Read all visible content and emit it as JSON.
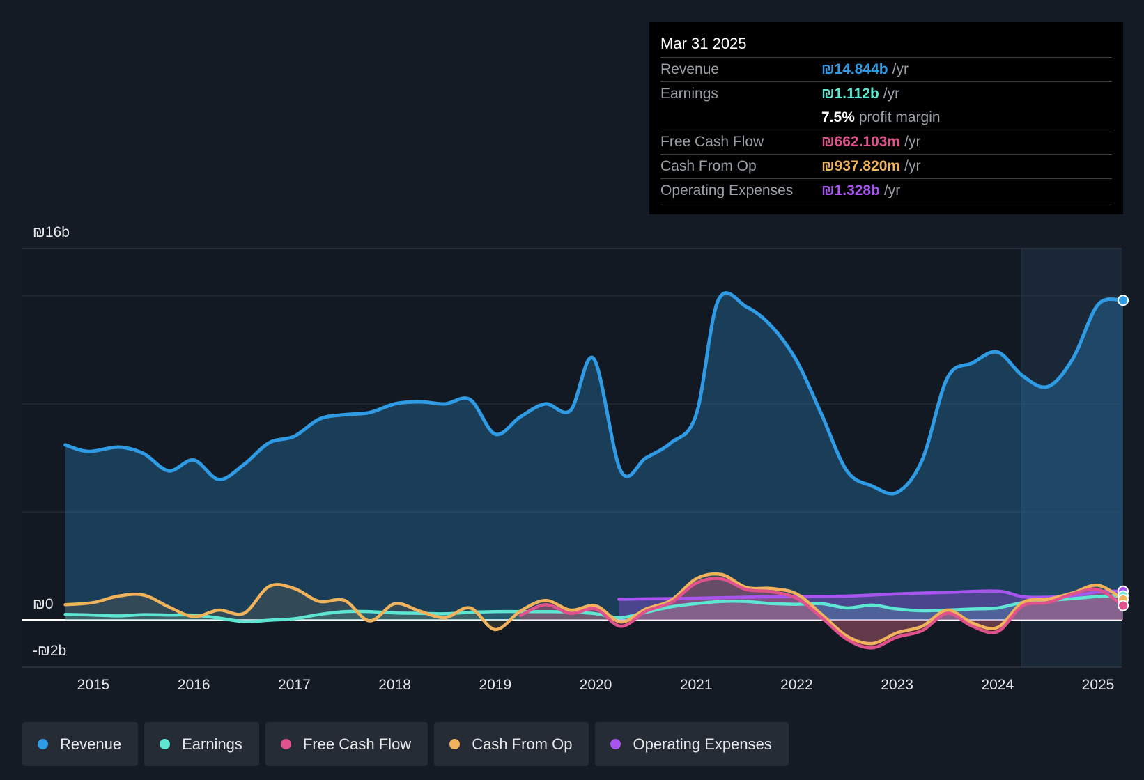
{
  "tooltip": {
    "date": "Mar 31 2025",
    "rows": [
      {
        "label": "Revenue",
        "value": "₪14.844b",
        "unit": "/yr",
        "color": "#2f9be5"
      },
      {
        "label": "Earnings",
        "value": "₪1.112b",
        "unit": "/yr",
        "color": "#5ee6d2"
      },
      {
        "label": "",
        "value": "7.5%",
        "unit": "profit margin",
        "color": "#ffffff"
      },
      {
        "label": "Free Cash Flow",
        "value": "₪662.103m",
        "unit": "/yr",
        "color": "#e0528c"
      },
      {
        "label": "Cash From Op",
        "value": "₪937.820m",
        "unit": "/yr",
        "color": "#f0b35c"
      },
      {
        "label": "Operating Expenses",
        "value": "₪1.328b",
        "unit": "/yr",
        "color": "#a855f0"
      }
    ]
  },
  "legend": [
    {
      "label": "Revenue",
      "color": "#2f9be5"
    },
    {
      "label": "Earnings",
      "color": "#5ee6d2"
    },
    {
      "label": "Free Cash Flow",
      "color": "#e0528c"
    },
    {
      "label": "Cash From Op",
      "color": "#f0b35c"
    },
    {
      "label": "Operating Expenses",
      "color": "#a855f0"
    }
  ],
  "chart_data": {
    "type": "line",
    "x_tick_labels": [
      "2015",
      "2016",
      "2017",
      "2018",
      "2019",
      "2020",
      "2021",
      "2022",
      "2023",
      "2024",
      "2025"
    ],
    "y_tick_labels": [
      "₪16b",
      "₪0",
      "-₪2b"
    ],
    "ylim": [
      -2,
      16
    ],
    "xlim": [
      2014.3,
      2025.25
    ],
    "grid": true,
    "legend_position": "bottom",
    "series": [
      {
        "name": "Revenue",
        "color": "#2f9be5",
        "x": [
          2014.72,
          2014.95,
          2015.25,
          2015.5,
          2015.75,
          2016.0,
          2016.25,
          2016.5,
          2016.75,
          2017.0,
          2017.25,
          2017.5,
          2017.75,
          2018.0,
          2018.25,
          2018.5,
          2018.75,
          2019.0,
          2019.25,
          2019.5,
          2019.75,
          2019.98,
          2020.25,
          2020.5,
          2020.75,
          2021.0,
          2021.22,
          2021.5,
          2021.75,
          2022.0,
          2022.25,
          2022.5,
          2022.75,
          2023.0,
          2023.25,
          2023.5,
          2023.75,
          2024.0,
          2024.25,
          2024.5,
          2024.75,
          2025.0,
          2025.25
        ],
        "y": [
          8.1,
          7.8,
          8.0,
          7.7,
          6.9,
          7.4,
          6.5,
          7.2,
          8.2,
          8.5,
          9.3,
          9.5,
          9.6,
          10.0,
          10.1,
          10.0,
          10.2,
          8.6,
          9.4,
          10.0,
          9.7,
          12.1,
          6.9,
          7.5,
          8.2,
          9.5,
          14.8,
          14.5,
          13.6,
          12.0,
          9.5,
          6.9,
          6.2,
          5.9,
          7.4,
          11.2,
          11.9,
          12.4,
          11.3,
          10.8,
          12.1,
          14.6,
          14.8
        ]
      },
      {
        "name": "Earnings",
        "color": "#5ee6d2",
        "x": [
          2014.72,
          2015.0,
          2015.25,
          2015.5,
          2015.75,
          2016.0,
          2016.25,
          2016.5,
          2016.75,
          2017.0,
          2017.25,
          2017.5,
          2017.75,
          2018.0,
          2018.25,
          2018.5,
          2018.75,
          2019.0,
          2019.25,
          2019.5,
          2019.75,
          2020.0,
          2020.25,
          2020.5,
          2020.75,
          2021.0,
          2021.25,
          2021.5,
          2021.75,
          2022.0,
          2022.25,
          2022.5,
          2022.75,
          2023.0,
          2023.25,
          2023.5,
          2023.75,
          2024.0,
          2024.25,
          2024.5,
          2024.75,
          2025.0,
          2025.25
        ],
        "y": [
          0.25,
          0.22,
          0.18,
          0.24,
          0.22,
          0.22,
          0.08,
          -0.08,
          -0.02,
          0.05,
          0.25,
          0.38,
          0.38,
          0.32,
          0.3,
          0.28,
          0.35,
          0.38,
          0.38,
          0.38,
          0.36,
          0.28,
          0.1,
          0.35,
          0.6,
          0.75,
          0.85,
          0.85,
          0.75,
          0.72,
          0.75,
          0.55,
          0.68,
          0.5,
          0.42,
          0.45,
          0.5,
          0.55,
          0.8,
          0.9,
          0.98,
          1.08,
          1.11
        ]
      },
      {
        "name": "Free Cash Flow",
        "color": "#e0528c",
        "x": [
          2019.25,
          2019.5,
          2019.75,
          2020.0,
          2020.25,
          2020.5,
          2020.75,
          2021.0,
          2021.25,
          2021.5,
          2021.75,
          2022.0,
          2022.25,
          2022.5,
          2022.75,
          2023.0,
          2023.25,
          2023.5,
          2023.75,
          2024.0,
          2024.25,
          2024.5,
          2024.75,
          2025.0,
          2025.25
        ],
        "y": [
          0.2,
          0.7,
          0.3,
          0.5,
          -0.3,
          0.4,
          0.8,
          1.7,
          1.9,
          1.4,
          1.3,
          1.0,
          0.1,
          -0.9,
          -1.3,
          -0.8,
          -0.5,
          0.3,
          -0.3,
          -0.55,
          0.65,
          0.8,
          1.2,
          1.4,
          0.66
        ]
      },
      {
        "name": "Cash From Op",
        "color": "#f0b35c",
        "x": [
          2014.72,
          2015.0,
          2015.25,
          2015.5,
          2015.75,
          2016.0,
          2016.25,
          2016.5,
          2016.75,
          2017.0,
          2017.25,
          2017.5,
          2017.75,
          2018.0,
          2018.25,
          2018.5,
          2018.75,
          2019.0,
          2019.25,
          2019.5,
          2019.75,
          2020.0,
          2020.25,
          2020.5,
          2020.75,
          2021.0,
          2021.25,
          2021.5,
          2021.75,
          2022.0,
          2022.25,
          2022.5,
          2022.75,
          2023.0,
          2023.25,
          2023.5,
          2023.75,
          2024.0,
          2024.25,
          2024.5,
          2024.75,
          2025.0,
          2025.25
        ],
        "y": [
          0.7,
          0.8,
          1.1,
          1.15,
          0.6,
          0.15,
          0.45,
          0.3,
          1.55,
          1.45,
          0.85,
          0.9,
          -0.05,
          0.75,
          0.4,
          0.1,
          0.55,
          -0.45,
          0.4,
          0.9,
          0.45,
          0.65,
          -0.1,
          0.5,
          0.9,
          1.9,
          2.1,
          1.5,
          1.45,
          1.2,
          0.25,
          -0.75,
          -1.1,
          -0.6,
          -0.3,
          0.45,
          -0.15,
          -0.35,
          0.8,
          0.95,
          1.25,
          1.6,
          0.94
        ]
      },
      {
        "name": "Operating Expenses",
        "color": "#a855f0",
        "x": [
          2020.23,
          2020.5,
          2021.0,
          2021.5,
          2022.0,
          2022.5,
          2023.0,
          2023.5,
          2024.0,
          2024.25,
          2024.5,
          2024.75,
          2025.0,
          2025.25
        ],
        "y": [
          0.95,
          0.97,
          1.0,
          1.05,
          1.08,
          1.1,
          1.2,
          1.27,
          1.33,
          1.07,
          1.05,
          1.1,
          1.3,
          1.33
        ]
      }
    ]
  }
}
